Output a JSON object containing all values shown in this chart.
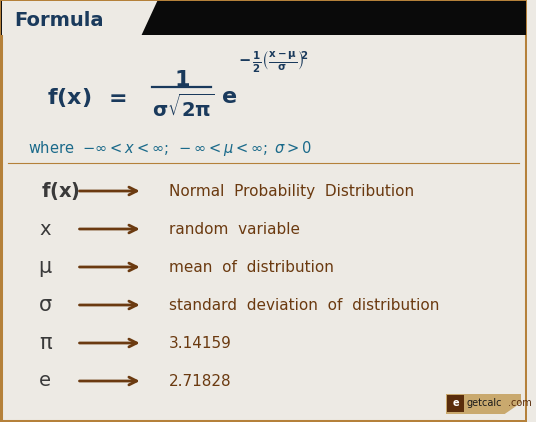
{
  "title": "Formula",
  "bg_color": "#edeae4",
  "header_dark": "#0a0a0a",
  "header_text_color": "#1a3a5c",
  "tab_color": "#edeae4",
  "border_color": "#b5813a",
  "formula_color": "#1a3a5c",
  "where_color": "#1a6a8a",
  "symbol_color": "#3a3a3a",
  "arrow_color": "#6b3a10",
  "desc_color": "#6b3a10",
  "rows": [
    {
      "symbol": "f(x)",
      "symbol_bold": true,
      "desc": "Normal  Probability  Distribution"
    },
    {
      "symbol": "x",
      "symbol_bold": false,
      "desc": "random  variable"
    },
    {
      "symbol": "μ",
      "symbol_bold": false,
      "desc": "mean  of  distribution"
    },
    {
      "symbol": "σ",
      "symbol_bold": false,
      "desc": "standard  deviation  of  distribution"
    },
    {
      "symbol": "π",
      "symbol_bold": false,
      "desc": "3.14159"
    },
    {
      "symbol": "e",
      "symbol_bold": false,
      "desc": "2.71828"
    }
  ],
  "figwidth": 5.36,
  "figheight": 4.22,
  "dpi": 100
}
